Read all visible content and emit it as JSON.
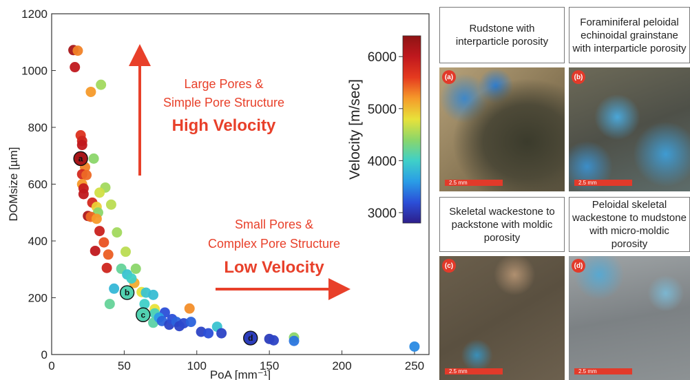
{
  "chart_data": {
    "type": "scatter",
    "xlabel": "PoA [mm⁻¹]",
    "ylabel": "DOMsize [µm]",
    "xlim": [
      0,
      260
    ],
    "ylim": [
      0,
      1200
    ],
    "xticks": [
      0,
      50,
      100,
      150,
      200,
      250
    ],
    "yticks": [
      0,
      200,
      400,
      600,
      800,
      1000,
      1200
    ],
    "colorbar": {
      "label": "Velocity [m/sec]",
      "range": [
        2800,
        6400
      ],
      "ticks": [
        3000,
        4000,
        5000,
        6000
      ],
      "colors": [
        "#2d1e8a",
        "#2b4fd8",
        "#2a9de6",
        "#3fd0c8",
        "#8bd66a",
        "#e8e23a",
        "#f59a2a",
        "#e53a1f",
        "#c0181e",
        "#8e1414"
      ]
    },
    "points": [
      {
        "x": 15,
        "y": 1072,
        "v": 6200
      },
      {
        "x": 18,
        "y": 1070,
        "v": 5300
      },
      {
        "x": 16,
        "y": 1012,
        "v": 6000
      },
      {
        "x": 34,
        "y": 950,
        "v": 4500
      },
      {
        "x": 27,
        "y": 925,
        "v": 5200
      },
      {
        "x": 20,
        "y": 772,
        "v": 5700
      },
      {
        "x": 21,
        "y": 752,
        "v": 5850
      },
      {
        "x": 21,
        "y": 738,
        "v": 6000
      },
      {
        "x": 20,
        "y": 690,
        "v": 6200
      },
      {
        "x": 29,
        "y": 690,
        "v": 4400
      },
      {
        "x": 23,
        "y": 660,
        "v": 5300
      },
      {
        "x": 21,
        "y": 635,
        "v": 5800
      },
      {
        "x": 24,
        "y": 632,
        "v": 5400
      },
      {
        "x": 21,
        "y": 600,
        "v": 5200
      },
      {
        "x": 22,
        "y": 585,
        "v": 5950
      },
      {
        "x": 37,
        "y": 588,
        "v": 4500
      },
      {
        "x": 33,
        "y": 570,
        "v": 4700
      },
      {
        "x": 22,
        "y": 565,
        "v": 6000
      },
      {
        "x": 28,
        "y": 535,
        "v": 5800
      },
      {
        "x": 31,
        "y": 520,
        "v": 4900
      },
      {
        "x": 41,
        "y": 528,
        "v": 4600
      },
      {
        "x": 32,
        "y": 500,
        "v": 4400
      },
      {
        "x": 25,
        "y": 488,
        "v": 6150
      },
      {
        "x": 27,
        "y": 485,
        "v": 5400
      },
      {
        "x": 31,
        "y": 478,
        "v": 5200
      },
      {
        "x": 45,
        "y": 430,
        "v": 4500
      },
      {
        "x": 33,
        "y": 435,
        "v": 5900
      },
      {
        "x": 36,
        "y": 395,
        "v": 5500
      },
      {
        "x": 39,
        "y": 352,
        "v": 5450
      },
      {
        "x": 51,
        "y": 362,
        "v": 4600
      },
      {
        "x": 30,
        "y": 365,
        "v": 6000
      },
      {
        "x": 38,
        "y": 305,
        "v": 5850
      },
      {
        "x": 48,
        "y": 302,
        "v": 4200
      },
      {
        "x": 58,
        "y": 302,
        "v": 4400
      },
      {
        "x": 52,
        "y": 282,
        "v": 3900
      },
      {
        "x": 57,
        "y": 252,
        "v": 5100
      },
      {
        "x": 55,
        "y": 268,
        "v": 4000
      },
      {
        "x": 62,
        "y": 220,
        "v": 4800
      },
      {
        "x": 43,
        "y": 232,
        "v": 3800
      },
      {
        "x": 52,
        "y": 218,
        "v": 4100
      },
      {
        "x": 40,
        "y": 178,
        "v": 4200
      },
      {
        "x": 65,
        "y": 218,
        "v": 3900
      },
      {
        "x": 70,
        "y": 210,
        "v": 3850
      },
      {
        "x": 64,
        "y": 178,
        "v": 4000
      },
      {
        "x": 71,
        "y": 160,
        "v": 4800
      },
      {
        "x": 63,
        "y": 140,
        "v": 4100
      },
      {
        "x": 71,
        "y": 145,
        "v": 4050
      },
      {
        "x": 78,
        "y": 148,
        "v": 3200
      },
      {
        "x": 70,
        "y": 112,
        "v": 4150
      },
      {
        "x": 74,
        "y": 130,
        "v": 3600
      },
      {
        "x": 76,
        "y": 118,
        "v": 3300
      },
      {
        "x": 81,
        "y": 105,
        "v": 3100
      },
      {
        "x": 83,
        "y": 125,
        "v": 3200
      },
      {
        "x": 86,
        "y": 115,
        "v": 3300
      },
      {
        "x": 88,
        "y": 100,
        "v": 3100
      },
      {
        "x": 91,
        "y": 110,
        "v": 3150
      },
      {
        "x": 95,
        "y": 162,
        "v": 5250
      },
      {
        "x": 96,
        "y": 115,
        "v": 3300
      },
      {
        "x": 103,
        "y": 80,
        "v": 3100
      },
      {
        "x": 108,
        "y": 75,
        "v": 3200
      },
      {
        "x": 114,
        "y": 98,
        "v": 3900
      },
      {
        "x": 117,
        "y": 75,
        "v": 3100
      },
      {
        "x": 137,
        "y": 58,
        "v": 3050
      },
      {
        "x": 150,
        "y": 55,
        "v": 3050
      },
      {
        "x": 153,
        "y": 50,
        "v": 3100
      },
      {
        "x": 167,
        "y": 60,
        "v": 4400
      },
      {
        "x": 167,
        "y": 48,
        "v": 3400
      },
      {
        "x": 250,
        "y": 28,
        "v": 3500
      }
    ],
    "labeled_points": [
      {
        "label": "a",
        "x": 20,
        "y": 690,
        "v": 6200
      },
      {
        "label": "b",
        "x": 52,
        "y": 218,
        "v": 4100
      },
      {
        "label": "c",
        "x": 63,
        "y": 140,
        "v": 4100
      },
      {
        "label": "d",
        "x": 137,
        "y": 58,
        "v": 3050
      }
    ],
    "annotations": {
      "top_line1": "Large Pores &",
      "top_line2": "Simple Pore Structure",
      "top_line3": "High Velocity",
      "bottom_line1": "Small Pores &",
      "bottom_line2": "Complex Pore Structure",
      "bottom_line3": "Low Velocity",
      "color": "#e8402a"
    }
  },
  "panels": [
    {
      "letter": "a",
      "caption": "Rudstone with interparticle porosity",
      "scale": "2.5 mm"
    },
    {
      "letter": "b",
      "caption": "Foraminiferal peloidal echinoidal grainstane with interparticle porosity",
      "scale": "2.5 mm"
    },
    {
      "letter": "c",
      "caption": "Skeletal wackestone to packstone with moldic porosity",
      "scale": "2.5 mm"
    },
    {
      "letter": "d",
      "caption": "Peloidal skeletal wackestone to mudstone with micro-moldic porosity",
      "scale": "2.5 mm"
    }
  ]
}
